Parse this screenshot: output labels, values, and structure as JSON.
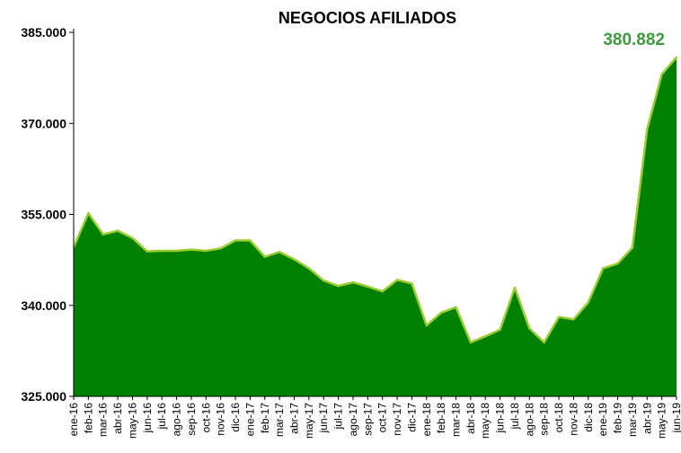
{
  "chart_data": {
    "type": "area",
    "title": "NEGOCIOS AFILIADOS",
    "xlabel": "",
    "ylabel": "",
    "ylim": [
      325000,
      385000
    ],
    "yticks": [
      325000,
      340000,
      355000,
      370000,
      385000
    ],
    "ytick_labels": [
      "325.000",
      "340.000",
      "355.000",
      "370.000",
      "385.000"
    ],
    "grid": false,
    "legend": "none",
    "fill_color": "#008000",
    "line_color": "#9acd32",
    "label_color": "#3f9a3f",
    "last_value_label": "380.882",
    "categories": [
      "ene-16",
      "feb-16",
      "mar-16",
      "abr-16",
      "may-16",
      "jun-16",
      "jul-16",
      "ago-16",
      "sep-16",
      "oct-16",
      "nov-16",
      "dic-16",
      "ene-17",
      "feb-17",
      "mar-17",
      "abr-17",
      "may-17",
      "jun-17",
      "jul-17",
      "ago-17",
      "sep-17",
      "oct-17",
      "nov-17",
      "dic-17",
      "ene-18",
      "feb-18",
      "mar-18",
      "abr-18",
      "may-18",
      "jun-18",
      "jul-18",
      "ago-18",
      "sep-18",
      "oct-18",
      "nov-18",
      "dic-18",
      "ene-19",
      "feb-19",
      "mar-19",
      "abr-19",
      "may-19",
      "jun-19"
    ],
    "values": [
      349600,
      355200,
      351700,
      352300,
      351100,
      348900,
      349000,
      349000,
      349200,
      349000,
      349400,
      350700,
      350700,
      348000,
      348800,
      347600,
      346100,
      344100,
      343200,
      343800,
      343100,
      342300,
      344200,
      343600,
      336700,
      338800,
      339700,
      333900,
      334900,
      336000,
      342900,
      336200,
      333900,
      338100,
      337700,
      340500,
      346100,
      346900,
      349500,
      369000,
      378100,
      380882
    ]
  }
}
